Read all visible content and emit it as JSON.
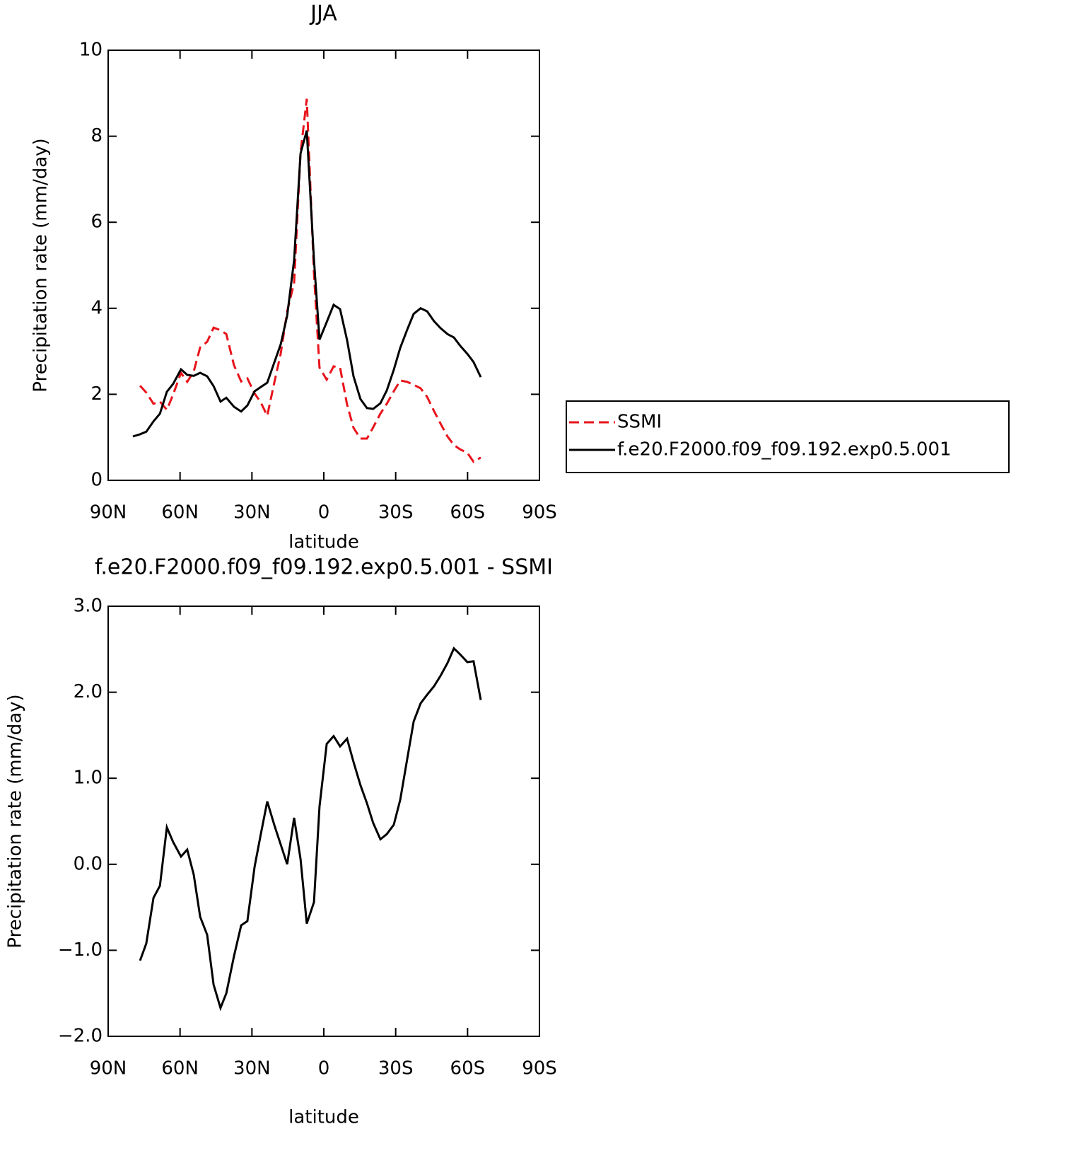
{
  "chart_data": [
    {
      "type": "line",
      "title": "JJA",
      "xlabel": "latitude",
      "ylabel": "Precipitation rate (mm/day)",
      "x": [
        79.7,
        76.7,
        74.1,
        71.1,
        68.4,
        65.5,
        62.9,
        59.6,
        57.0,
        54.3,
        51.6,
        48.7,
        46.0,
        43.1,
        40.7,
        37.5,
        34.5,
        31.9,
        28.9,
        26.3,
        23.6,
        20.6,
        18.0,
        15.3,
        12.4,
        9.7,
        7.1,
        4.1,
        1.8,
        -1.2,
        -4.1,
        -6.8,
        -9.7,
        -12.4,
        -15.3,
        -18.0,
        -20.6,
        -23.6,
        -26.3,
        -29.2,
        -31.9,
        -34.8,
        -37.5,
        -40.4,
        -43.1,
        -46.0,
        -48.7,
        -51.6,
        -54.3,
        -56.9,
        -59.9,
        -62.5,
        -65.5
      ],
      "series": [
        {
          "name": "SSMI",
          "color": "#e8141c",
          "linestyle": "dashed",
          "values": [
            null,
            2.2,
            2.04,
            1.78,
            1.83,
            1.64,
            1.99,
            2.5,
            2.29,
            2.53,
            3.09,
            3.22,
            3.55,
            3.49,
            3.4,
            2.68,
            2.3,
            2.37,
            2.02,
            1.81,
            1.5,
            2.29,
            2.94,
            3.93,
            4.59,
            7.62,
            8.87,
            4.8,
            2.62,
            2.34,
            2.65,
            2.62,
            1.76,
            1.22,
            0.97,
            0.97,
            1.23,
            1.55,
            1.78,
            2.07,
            2.32,
            2.29,
            2.22,
            2.14,
            1.94,
            1.61,
            1.32,
            1.02,
            0.82,
            0.72,
            0.64,
            0.43,
            0.53
          ]
        },
        {
          "name": "f.e20.F2000.f09_f09.192.exp0.5.001",
          "color": "#000000",
          "linestyle": "solid",
          "values": [
            1.02,
            1.07,
            1.13,
            1.37,
            1.55,
            2.06,
            2.24,
            2.58,
            2.45,
            2.43,
            2.5,
            2.42,
            2.19,
            1.83,
            1.92,
            1.71,
            1.6,
            1.74,
            2.07,
            2.17,
            2.27,
            2.75,
            3.16,
            3.83,
            5.12,
            7.6,
            8.13,
            5.12,
            3.27,
            3.68,
            4.08,
            3.98,
            3.26,
            2.42,
            1.89,
            1.68,
            1.66,
            1.79,
            2.09,
            2.57,
            3.08,
            3.5,
            3.87,
            4.0,
            3.93,
            3.7,
            3.54,
            3.4,
            3.32,
            3.13,
            2.94,
            2.75,
            2.4
          ]
        }
      ],
      "xlim": [
        90,
        -90
      ],
      "xticks": [
        {
          "value": 90,
          "label": "90N"
        },
        {
          "value": 60,
          "label": "60N"
        },
        {
          "value": 30,
          "label": "30N"
        },
        0,
        {
          "value": -30,
          "label": "30S"
        },
        {
          "value": -60,
          "label": "60S"
        },
        {
          "value": -90,
          "label": "90S"
        }
      ],
      "ylim": [
        0,
        10
      ],
      "yticks": [
        0,
        2,
        4,
        6,
        8,
        10
      ],
      "legend": "right"
    },
    {
      "type": "line",
      "title": "f.e20.F2000.f09_f09.192.exp0.5.001 - SSMI",
      "xlabel": "latitude",
      "ylabel": "Precipitation rate (mm/day)",
      "x": [
        76.7,
        74.1,
        71.1,
        68.4,
        65.5,
        62.9,
        59.6,
        57.0,
        54.3,
        51.6,
        48.7,
        46.0,
        43.1,
        40.7,
        37.5,
        34.5,
        31.9,
        28.9,
        26.3,
        23.6,
        20.6,
        18.0,
        15.3,
        12.4,
        9.7,
        7.1,
        4.1,
        1.8,
        -1.2,
        -4.1,
        -6.8,
        -9.7,
        -12.4,
        -15.3,
        -18.0,
        -20.6,
        -23.6,
        -26.3,
        -29.2,
        -31.9,
        -34.8,
        -37.5,
        -40.4,
        -43.1,
        -46.0,
        -48.7,
        -51.6,
        -54.3,
        -56.9,
        -59.9,
        -62.5,
        -65.5
      ],
      "series": [
        {
          "color": "#000000",
          "linestyle": "solid",
          "values": [
            -1.12,
            -0.92,
            -0.39,
            -0.25,
            0.43,
            0.26,
            0.09,
            0.17,
            -0.12,
            -0.61,
            -0.82,
            -1.4,
            -1.67,
            -1.5,
            -1.07,
            -0.71,
            -0.66,
            -0.03,
            0.35,
            0.73,
            0.45,
            0.23,
            0.0,
            0.54,
            0.06,
            -0.69,
            -0.44,
            0.67,
            1.4,
            1.49,
            1.37,
            1.46,
            1.19,
            0.92,
            0.71,
            0.48,
            0.29,
            0.35,
            0.46,
            0.75,
            1.22,
            1.66,
            1.87,
            1.97,
            2.07,
            2.19,
            2.34,
            2.51,
            2.44,
            2.35,
            2.36,
            1.91
          ]
        }
      ],
      "xlim": [
        90,
        -90
      ],
      "xticks": [
        {
          "value": 90,
          "label": "90N"
        },
        {
          "value": 60,
          "label": "60N"
        },
        {
          "value": 30,
          "label": "30N"
        },
        0,
        {
          "value": -30,
          "label": "30S"
        },
        {
          "value": -60,
          "label": "60S"
        },
        {
          "value": -90,
          "label": "90S"
        }
      ],
      "ylim": [
        -2,
        3
      ],
      "yticks": [
        {
          "value": -2,
          "label": "−2.0"
        },
        {
          "value": -1,
          "label": "−1.0"
        },
        {
          "value": 0,
          "label": "0.0"
        },
        {
          "value": 1,
          "label": "1.0"
        },
        {
          "value": 2,
          "label": "2.0"
        },
        {
          "value": 3,
          "label": "3.0"
        }
      ]
    }
  ]
}
